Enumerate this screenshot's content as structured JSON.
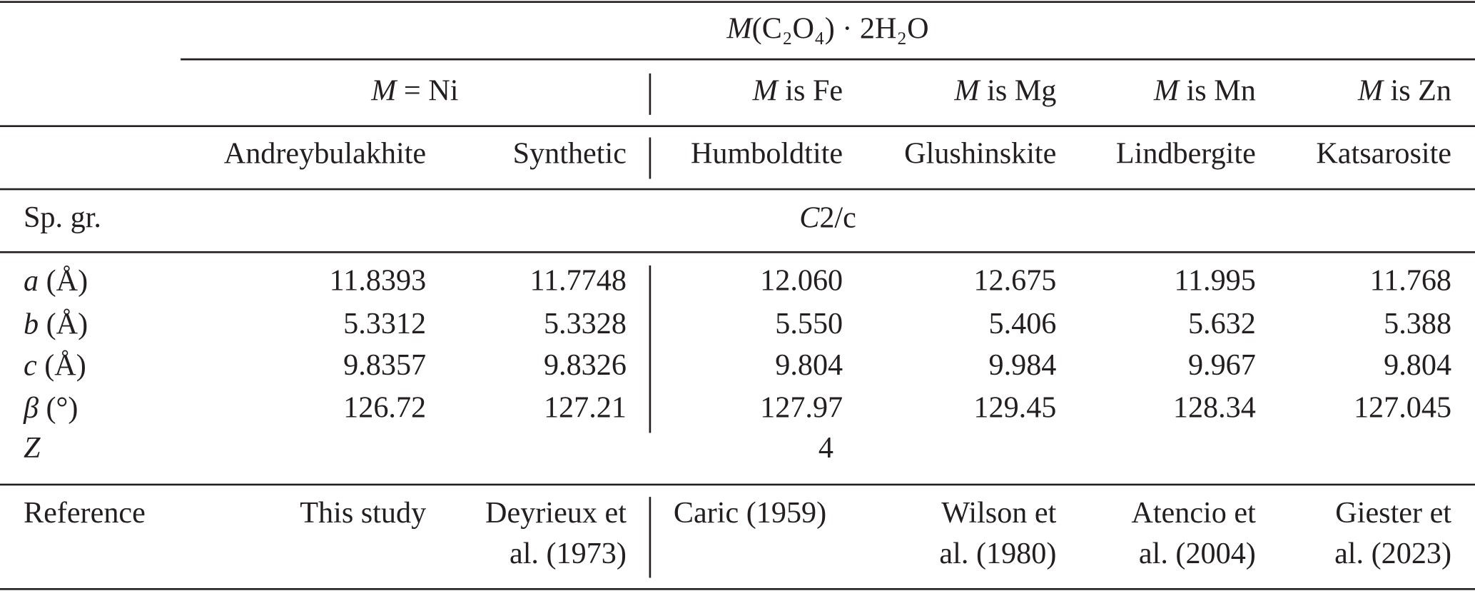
{
  "table": {
    "super_header": {
      "symbol": "M",
      "rest": "(C₂O₄) · 2H₂O"
    },
    "group_headers": [
      {
        "symbol": "M",
        "rest": "= Ni"
      },
      {
        "symbol": "M",
        "rest": "is Fe"
      },
      {
        "symbol": "M",
        "rest": "is Mg"
      },
      {
        "symbol": "M",
        "rest": "is Mn"
      },
      {
        "symbol": "M",
        "rest": "is Zn"
      }
    ],
    "columns": [
      "Andreybulakhite",
      "Synthetic",
      "Humboldtite",
      "Glushinskite",
      "Lindbergite",
      "Katsarosite"
    ],
    "space_group": {
      "label": "Sp. gr.",
      "symbol": "C",
      "rest": "2/c"
    },
    "rows": [
      {
        "symbol": "a",
        "unit": "(Å)",
        "values": [
          "11.8393",
          "11.7748",
          "12.060",
          "12.675",
          "11.995",
          "11.768"
        ]
      },
      {
        "symbol": "b",
        "unit": "(Å)",
        "values": [
          "5.3312",
          "5.3328",
          "5.550",
          "5.406",
          "5.632",
          "5.388"
        ]
      },
      {
        "symbol": "c",
        "unit": "(Å)",
        "values": [
          "9.8357",
          "9.8326",
          "9.804",
          "9.984",
          "9.967",
          "9.804"
        ]
      },
      {
        "symbol": "β",
        "unit": "(°)",
        "values": [
          "126.72",
          "127.21",
          "127.97",
          "129.45",
          "128.34",
          "127.045"
        ]
      }
    ],
    "z_row": {
      "label": "Z",
      "value": "4"
    },
    "reference": {
      "label": "Reference",
      "values": [
        [
          "This study"
        ],
        [
          "Deyrieux et",
          "al. (1973)"
        ],
        [
          "Caric (1959)"
        ],
        [
          "Wilson et",
          "al. (1980)"
        ],
        [
          "Atencio et",
          "al. (2004)"
        ],
        [
          "Giester et",
          "al. (2023)"
        ]
      ]
    }
  }
}
